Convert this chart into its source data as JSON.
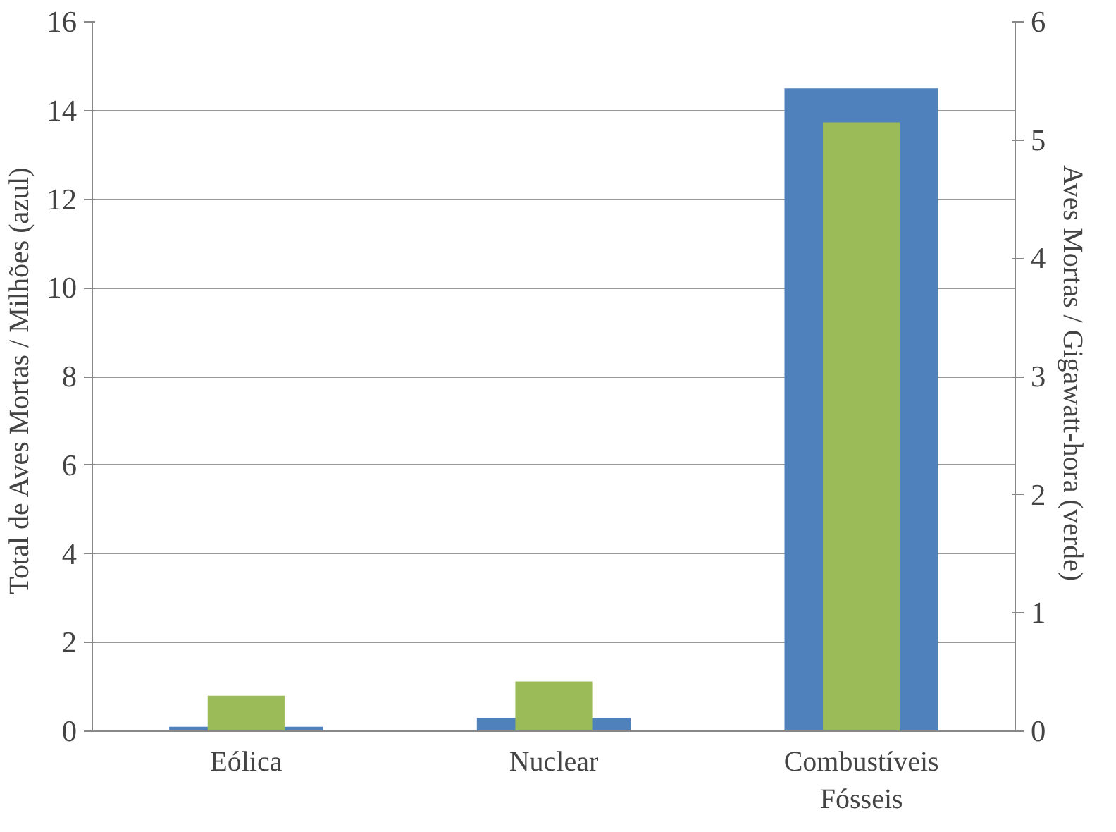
{
  "chart_data": {
    "type": "bar",
    "ylabel": "Total de Aves Mortas / Milhões  (azul)",
    "y2label": "Aves Mortas / Gigawatt-hora  (verde)",
    "categories": [
      "Eólica",
      "Nuclear",
      "Combustíveis Fósseis"
    ],
    "series": [
      {
        "color": "#4f81bd",
        "values": [
          0.1,
          0.3,
          14.5
        ]
      },
      {
        "color": "#9bbb59",
        "values": [
          0.3,
          0.42,
          5.15
        ],
        "axis": "y2"
      }
    ],
    "ylim": [
      0,
      16
    ],
    "yticks": [
      0,
      2,
      4,
      6,
      8,
      10,
      12,
      14,
      16
    ],
    "y2lim": [
      0,
      6
    ],
    "y2ticks": [
      0,
      1,
      2,
      3,
      4,
      5,
      6
    ],
    "grid": "y"
  }
}
